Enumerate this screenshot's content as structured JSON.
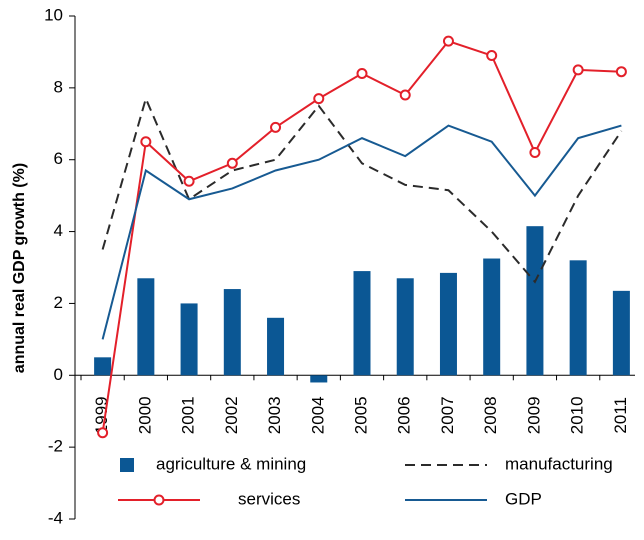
{
  "chart_data": {
    "type": "bar",
    "y_label": "annual real GDP growth (%)",
    "categories": [
      "1999",
      "2000",
      "2001",
      "2002",
      "2003",
      "2004",
      "2005",
      "2006",
      "2007",
      "2008",
      "2009",
      "2010",
      "2011"
    ],
    "series": [
      {
        "name": "agriculture & mining",
        "mark": "bar",
        "color": "#0b5794",
        "values": [
          0.5,
          2.7,
          2.0,
          2.4,
          1.6,
          -0.2,
          2.9,
          2.7,
          2.85,
          3.25,
          4.15,
          3.2,
          2.35
        ]
      },
      {
        "name": "manufacturing",
        "mark": "line",
        "dash": true,
        "color": "#2b2b2b",
        "values": [
          3.5,
          7.7,
          4.9,
          5.7,
          6.0,
          7.5,
          5.9,
          5.3,
          5.15,
          4.0,
          2.6,
          5.0,
          6.8
        ]
      },
      {
        "name": "services",
        "mark": "line",
        "marker": "circle",
        "color": "#e3202a",
        "values": [
          -1.6,
          6.5,
          5.4,
          5.9,
          6.9,
          7.7,
          8.4,
          7.8,
          9.3,
          8.9,
          6.2,
          8.5,
          8.45
        ]
      },
      {
        "name": "GDP",
        "mark": "line",
        "color": "#175a92",
        "values": [
          1.0,
          5.7,
          4.9,
          5.2,
          5.7,
          6.0,
          6.6,
          6.1,
          6.95,
          6.5,
          5.0,
          6.6,
          6.95
        ]
      }
    ],
    "ylim": [
      -4,
      10
    ],
    "yticks": [
      -4,
      -2,
      0,
      2,
      4,
      6,
      8,
      10
    ],
    "legend": "bottom"
  }
}
